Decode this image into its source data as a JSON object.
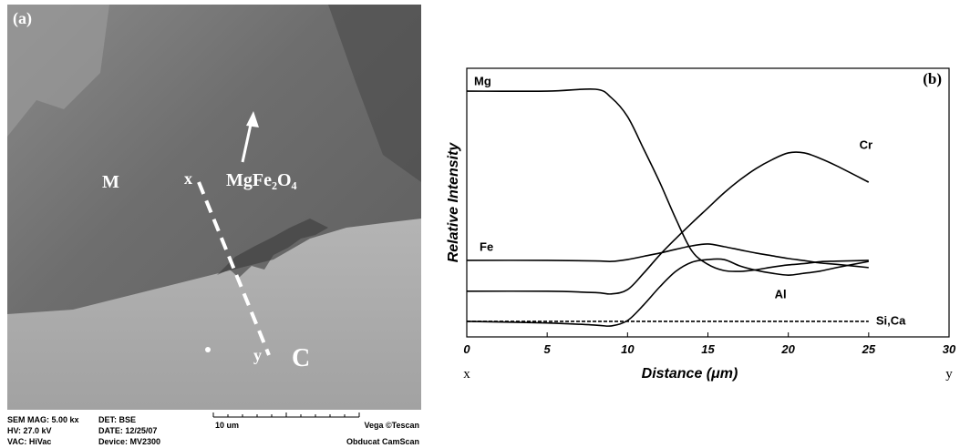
{
  "sem_image": {
    "panel_label": "(a)",
    "labels": {
      "matrix": "M",
      "phase": "MgFe₂O₄",
      "start": "x",
      "end": "y",
      "region": "C"
    },
    "footer": {
      "mag": "SEM MAG: 5.00 kx",
      "hv": "HV: 27.0 kV",
      "vac": "VAC: HiVac",
      "det": "DET: BSE",
      "date": "DATE: 12/25/07",
      "device": "Device: MV2300",
      "scale": "10 um",
      "brand": "Vega ©Tescan",
      "maker": "Obducat CamScan"
    }
  },
  "chart_data": {
    "type": "line",
    "panel_label": "(b)",
    "x_label": "Distance (μm)",
    "y_label": "Relative Intensity",
    "x_start_label": "x",
    "x_end_label": "y",
    "x": [
      0,
      5,
      8,
      9,
      10,
      11,
      12,
      13,
      14,
      15,
      16,
      17,
      18,
      19,
      20,
      21,
      22,
      23,
      25
    ],
    "xlim": [
      0,
      30
    ],
    "xticks": [
      0,
      5,
      10,
      15,
      20,
      25,
      30
    ],
    "ylim": [
      0,
      100
    ],
    "series": [
      {
        "name": "Mg",
        "color": "#000000",
        "values": [
          91.5,
          91.5,
          92.2,
          89,
          82,
          70,
          57.6,
          44,
          32,
          27,
          24.7,
          24.4,
          25,
          26,
          26.8,
          27.3,
          28,
          28.2,
          28.5
        ]
      },
      {
        "name": "Cr",
        "color": "#000000",
        "values": [
          17,
          17,
          16.5,
          16,
          17.6,
          23.7,
          30.5,
          36.6,
          42.4,
          48,
          53.6,
          58.5,
          62.7,
          66,
          68.5,
          68.5,
          66.4,
          63.7,
          57.6
        ]
      },
      {
        "name": "Fe",
        "color": "#000000",
        "values": [
          28.5,
          28.5,
          28.3,
          28.1,
          28.8,
          30,
          31.2,
          32.6,
          33.9,
          34.6,
          33.6,
          32.4,
          31.2,
          30.2,
          29.2,
          28.4,
          27.5,
          27,
          25.8
        ]
      },
      {
        "name": "Al",
        "color": "#000000",
        "values": [
          5.8,
          5.2,
          4.4,
          4.1,
          6.1,
          11.9,
          18.6,
          24.4,
          27.8,
          28.8,
          28.8,
          26.4,
          24.8,
          23.7,
          23,
          23.7,
          24.5,
          25.8,
          28.1
        ]
      },
      {
        "name": "Si,Ca",
        "color": "#000000",
        "style": "dashed",
        "values": [
          5.8,
          5.8,
          5.8,
          5.8,
          5.8,
          5.8,
          5.8,
          5.8,
          5.8,
          5.8,
          5.8,
          5.8,
          5.8,
          5.8,
          5.8,
          5.8,
          5.8,
          5.8,
          5.8
        ]
      }
    ]
  }
}
